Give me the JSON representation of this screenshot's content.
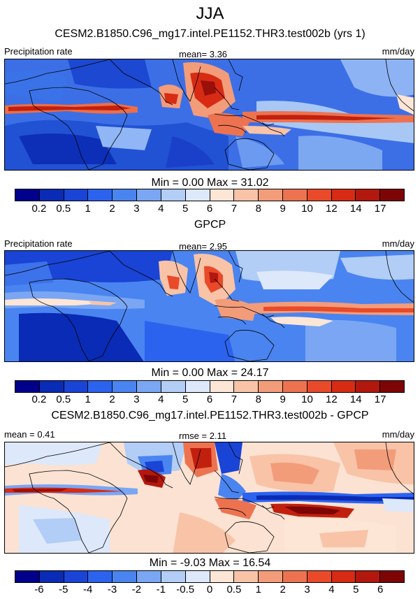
{
  "title": "JJA",
  "panel1": {
    "title": "CESM2.B1850.C96_mg17.intel.PE1152.THR3.test002b (yrs 1)",
    "left_label": "Precipitation rate",
    "center_label": "mean=   3.36",
    "right_label": "mm/day",
    "minmax": "Min =   0.00 Max =  31.02"
  },
  "panel2": {
    "title": "GPCP",
    "left_label": "Precipitation rate",
    "center_label": "mean=   2.95",
    "right_label": "mm/day",
    "minmax": "Min =   0.00 Max =  24.17"
  },
  "panel3": {
    "title": "CESM2.B1850.C96_mg17.intel.PE1152.THR3.test002b - GPCP",
    "left_label": "mean =   0.41",
    "center_label": "rmse =   2.11",
    "right_label": "mm/day",
    "minmax": "Min =  -9.03 Max =  16.54"
  },
  "colorbar_precip": {
    "colors": [
      "#00008b",
      "#0a2bb5",
      "#1a44d6",
      "#2c63ee",
      "#4a84f0",
      "#7aa6f3",
      "#b2cdf6",
      "#dde8fb",
      "#fde6d6",
      "#f8c3a7",
      "#f39c7a",
      "#ed7350",
      "#e84a2a",
      "#d72b14",
      "#b3180e",
      "#7d0505"
    ],
    "labels": [
      "0.2",
      "0.5",
      "1",
      "2",
      "3",
      "4",
      "5",
      "6",
      "7",
      "8",
      "9",
      "10",
      "12",
      "14",
      "17"
    ]
  },
  "colorbar_diff": {
    "colors": [
      "#00008b",
      "#0a2bb5",
      "#1a44d6",
      "#2c63ee",
      "#4a84f0",
      "#7aa6f3",
      "#b2cdf6",
      "#dde8fb",
      "#fde6d6",
      "#f8c3a7",
      "#f39c7a",
      "#ed7350",
      "#e84a2a",
      "#d72b14",
      "#b3180e",
      "#7d0505"
    ],
    "labels": [
      "-6",
      "-5",
      "-4",
      "-3",
      "-2",
      "-1",
      "-0.5",
      "0",
      "0.5",
      "1",
      "2",
      "3",
      "4",
      "5",
      "6"
    ]
  }
}
